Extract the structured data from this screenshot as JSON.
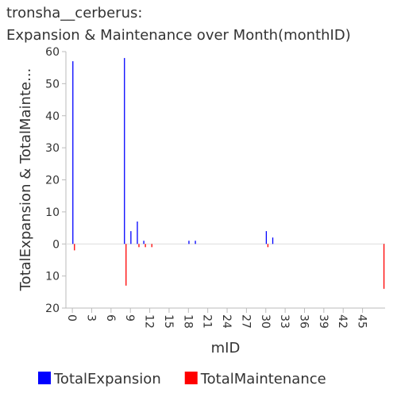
{
  "chart_data": {
    "type": "bar",
    "title": "tronsha__cerberus:",
    "subtitle": "Expansion & Maintenance over Month(monthID)",
    "x_label": "mID",
    "y_label": "TotalExpansion & TotalMainte...",
    "x": [
      0,
      8,
      9,
      10,
      11,
      12,
      18,
      19,
      30,
      31,
      48
    ],
    "series": [
      {
        "name": "TotalExpansion",
        "color": "#0000ff",
        "values": [
          57,
          58,
          4,
          7,
          1,
          0,
          1,
          1,
          4,
          2,
          0
        ]
      },
      {
        "name": "TotalMaintenance",
        "color": "#ff0000",
        "values": [
          -2,
          -13,
          0,
          -1,
          -1,
          -1,
          0,
          0,
          -1,
          0,
          -14
        ]
      }
    ],
    "xlim": [
      -1,
      48.5
    ],
    "xticks": [
      0,
      3,
      6,
      9,
      12,
      15,
      18,
      21,
      24,
      27,
      30,
      33,
      36,
      39,
      42,
      45
    ],
    "ylim": [
      -20,
      60
    ],
    "yticks": [
      60,
      50,
      40,
      30,
      20,
      10,
      0,
      {
        "value": -10,
        "label": "10"
      },
      {
        "value": -20,
        "label": "20"
      }
    ],
    "legend": "bottom"
  }
}
